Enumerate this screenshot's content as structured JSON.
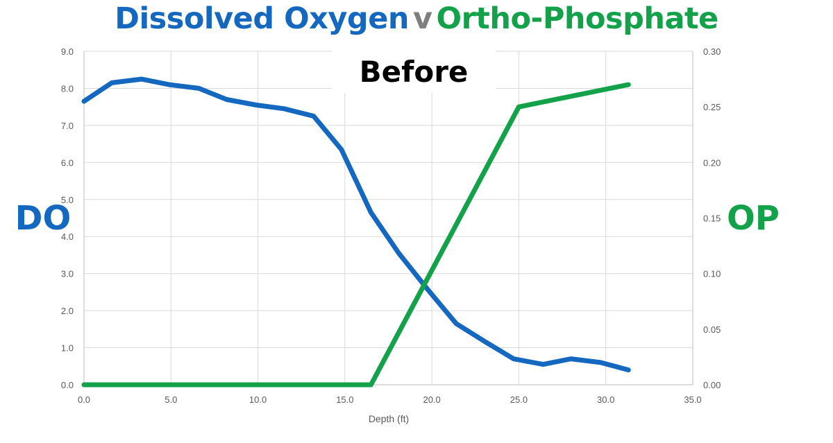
{
  "title": {
    "part1": "Dissolved Oxygen",
    "part2": "v",
    "part3": "Ortho-Phosphate"
  },
  "subtitle": "Before",
  "left_label": "DO",
  "right_label": "OP",
  "colors": {
    "do": "#1468c0",
    "op": "#13a24a",
    "grid": "#d9d9d9",
    "axis": "#bfbfbf"
  },
  "chart_data": {
    "type": "line",
    "xlabel": "Depth (ft)",
    "x_ticks": [
      "0.0",
      "5.0",
      "10.0",
      "15.0",
      "20.0",
      "25.0",
      "30.0",
      "35.0"
    ],
    "xlim": [
      0,
      35
    ],
    "y_left_ticks": [
      "0.0",
      "1.0",
      "2.0",
      "3.0",
      "4.0",
      "5.0",
      "6.0",
      "7.0",
      "8.0",
      "9.0"
    ],
    "ylim_left": [
      0,
      9
    ],
    "y_right_ticks": [
      "0.00",
      "0.05",
      "0.10",
      "0.15",
      "0.20",
      "0.25",
      "0.30"
    ],
    "ylim_right": [
      0,
      0.3
    ],
    "series": [
      {
        "name": "DO",
        "axis": "left",
        "x": [
          0,
          1.6,
          3.3,
          4.9,
          6.6,
          8.2,
          9.9,
          11.5,
          13.2,
          14.8,
          16.5,
          18.1,
          19.8,
          21.4,
          23.1,
          24.7,
          26.4,
          28.0,
          29.7,
          31.3
        ],
        "y": [
          7.65,
          8.15,
          8.25,
          8.1,
          8.0,
          7.7,
          7.55,
          7.45,
          7.25,
          6.35,
          4.65,
          3.55,
          2.55,
          1.65,
          1.15,
          0.7,
          0.55,
          0.7,
          0.6,
          0.4
        ]
      },
      {
        "name": "OP",
        "axis": "right",
        "x": [
          0,
          16.5,
          25.0,
          31.3
        ],
        "y": [
          0.0,
          0.0,
          0.25,
          0.27
        ]
      }
    ]
  }
}
